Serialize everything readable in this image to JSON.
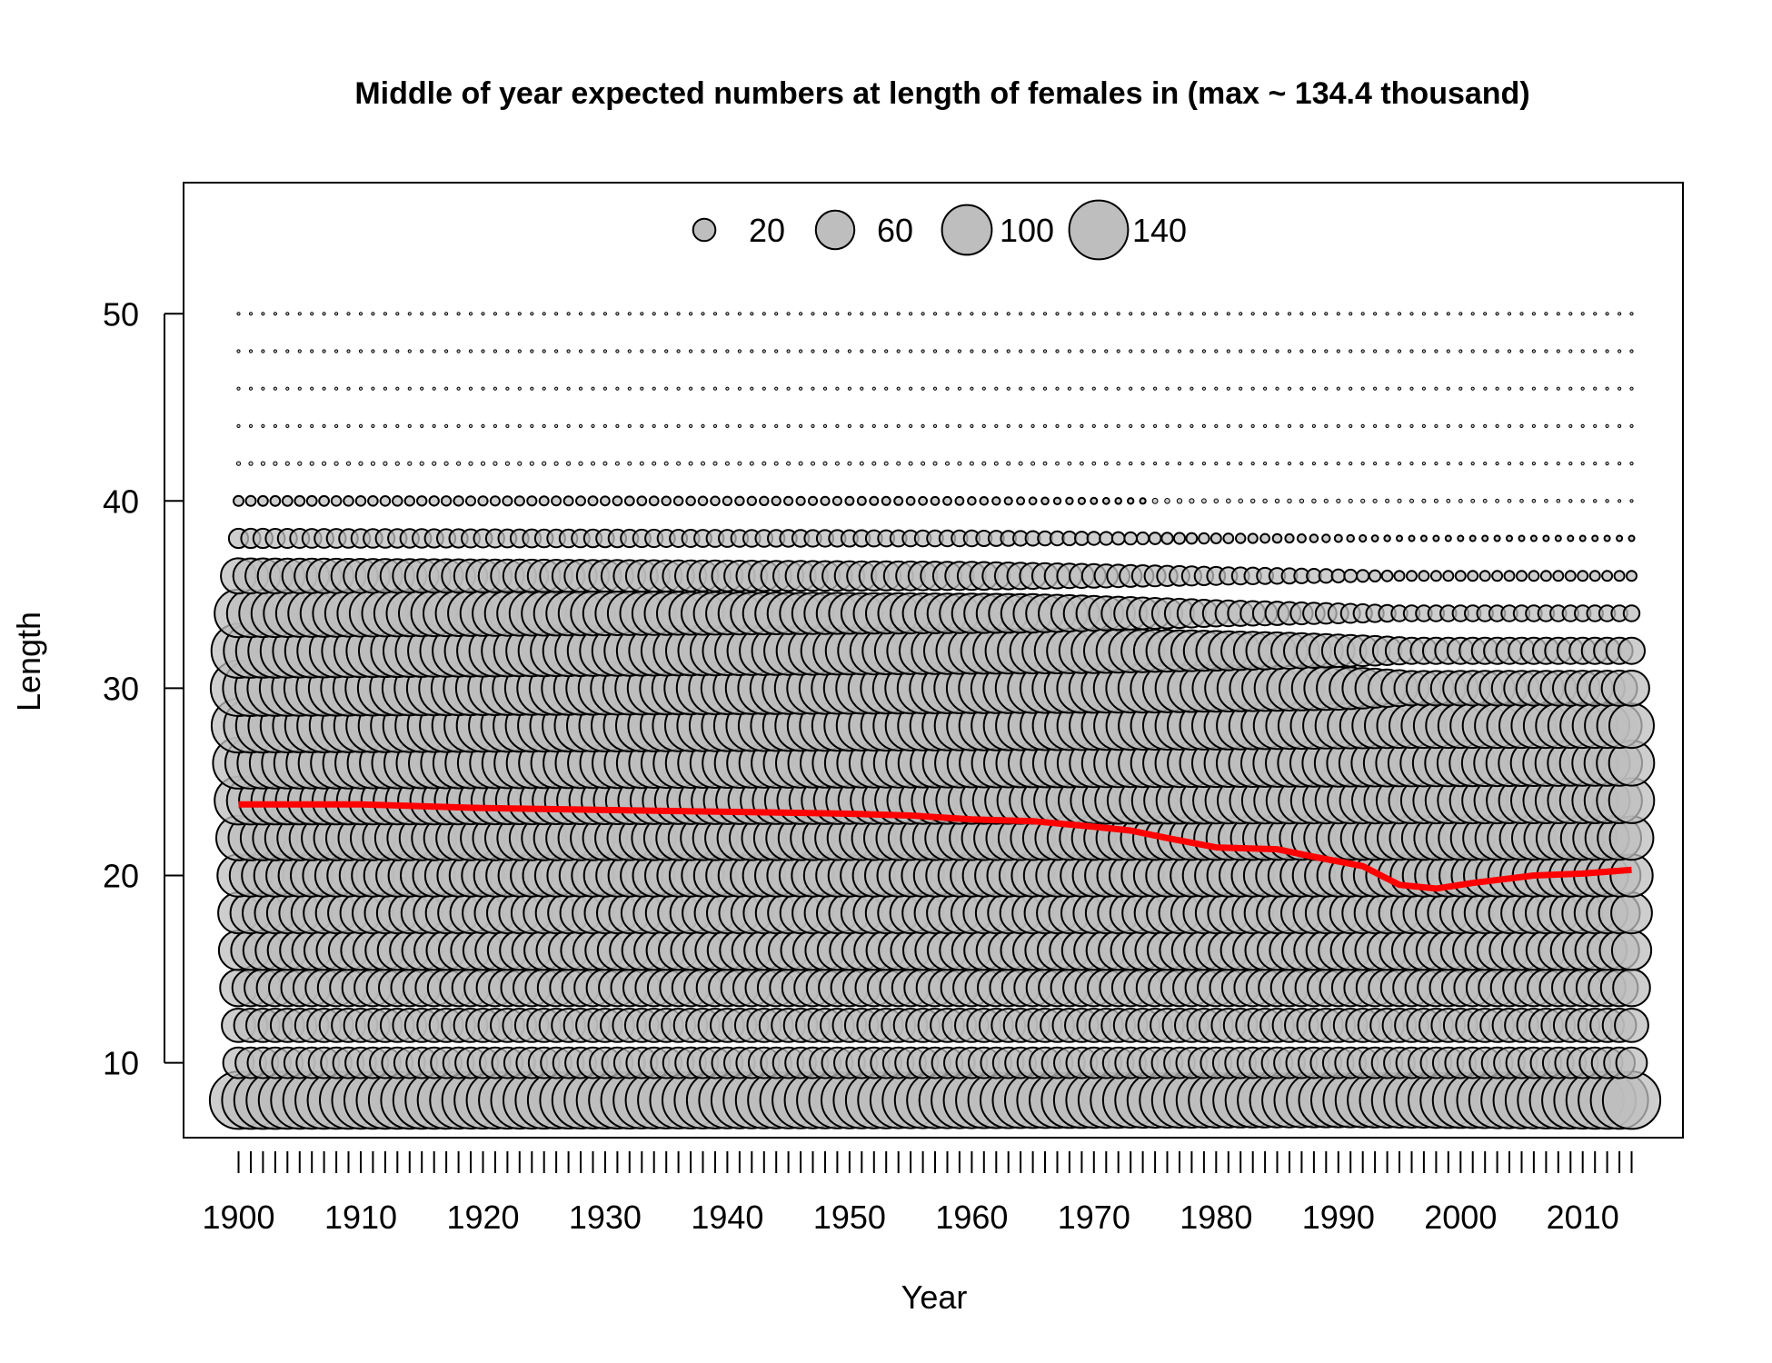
{
  "chart_data": {
    "type": "bubble",
    "title": "Middle of year expected numbers at length of females in (max ~ 134.4 thousand)",
    "xlabel": "Year",
    "ylabel": "Length",
    "xlim": [
      1895.5,
      2018.2
    ],
    "ylim": [
      6,
      57
    ],
    "x_ticks": [
      1900,
      1910,
      1920,
      1930,
      1940,
      1950,
      1960,
      1970,
      1980,
      1990,
      2000,
      2010
    ],
    "y_ticks": [
      10,
      20,
      30,
      40,
      50
    ],
    "years": {
      "start": 1900,
      "end": 2014
    },
    "length_bins": [
      8,
      10,
      12,
      14,
      16,
      18,
      20,
      22,
      24,
      26,
      28,
      30,
      32,
      34,
      36,
      38,
      40,
      42,
      44,
      46,
      48,
      50
    ],
    "bin_numbers_thousands": {
      "8": [
        [
          1900,
          133
        ],
        [
          1960,
          126
        ],
        [
          1990,
          118
        ],
        [
          2014,
          133
        ]
      ],
      "10": [
        [
          1900,
          38
        ],
        [
          2014,
          38
        ]
      ],
      "12": [
        [
          1900,
          45
        ],
        [
          2014,
          45
        ]
      ],
      "14": [
        [
          1900,
          55
        ],
        [
          2014,
          55
        ]
      ],
      "16": [
        [
          1900,
          62
        ],
        [
          2014,
          62
        ]
      ],
      "18": [
        [
          1900,
          67
        ],
        [
          2014,
          67
        ]
      ],
      "20": [
        [
          1900,
          72
        ],
        [
          2014,
          72
        ]
      ],
      "22": [
        [
          1900,
          80
        ],
        [
          2014,
          76
        ]
      ],
      "24": [
        [
          1900,
          92
        ],
        [
          1990,
          84
        ],
        [
          2014,
          82
        ]
      ],
      "26": [
        [
          1900,
          105
        ],
        [
          1980,
          92
        ],
        [
          2014,
          82
        ]
      ],
      "28": [
        [
          1900,
          117
        ],
        [
          1980,
          92
        ],
        [
          1995,
          80
        ],
        [
          2014,
          80
        ]
      ],
      "30": [
        [
          1900,
          125
        ],
        [
          1975,
          95
        ],
        [
          1990,
          75
        ],
        [
          1996,
          48
        ],
        [
          2014,
          50
        ]
      ],
      "32": [
        [
          1900,
          118
        ],
        [
          1970,
          80
        ],
        [
          1985,
          55
        ],
        [
          1996,
          28
        ],
        [
          2014,
          28
        ]
      ],
      "34": [
        [
          1900,
          92
        ],
        [
          1965,
          60
        ],
        [
          1980,
          28
        ],
        [
          1995,
          10
        ],
        [
          2014,
          10
        ]
      ],
      "36": [
        [
          1900,
          50
        ],
        [
          1960,
          32
        ],
        [
          1980,
          13
        ],
        [
          1995,
          4
        ],
        [
          2014,
          4
        ]
      ],
      "38": [
        [
          1900,
          15
        ],
        [
          1960,
          10
        ],
        [
          1980,
          4
        ],
        [
          1995,
          1.2
        ],
        [
          2014,
          1.2
        ]
      ],
      "40": [
        [
          1900,
          4
        ],
        [
          1960,
          2.5
        ],
        [
          1980,
          0.7
        ],
        [
          2014,
          0.35
        ]
      ],
      "42": [
        [
          1900,
          0.6
        ],
        [
          1970,
          0.5
        ],
        [
          1980,
          0.1
        ],
        [
          2014,
          0.1
        ]
      ],
      "44": [
        [
          1900,
          0.08
        ],
        [
          2014,
          0.08
        ]
      ],
      "46": [
        [
          1900,
          0.08
        ],
        [
          2014,
          0.08
        ]
      ],
      "48": [
        [
          1900,
          0.08
        ],
        [
          2014,
          0.08
        ]
      ],
      "50": [
        [
          1900,
          0.08
        ],
        [
          2014,
          0.08
        ]
      ]
    },
    "legend": {
      "placement": "top-center",
      "entries": [
        {
          "label": "20",
          "value": 20
        },
        {
          "label": "60",
          "value": 60
        },
        {
          "label": "100",
          "value": 100
        },
        {
          "label": "140",
          "value": 140
        }
      ]
    },
    "mean_length_line": {
      "color": "#ff0000",
      "points": [
        [
          1900,
          23.8
        ],
        [
          1910,
          23.8
        ],
        [
          1915,
          23.7
        ],
        [
          1920,
          23.6
        ],
        [
          1930,
          23.5
        ],
        [
          1940,
          23.4
        ],
        [
          1950,
          23.3
        ],
        [
          1955,
          23.2
        ],
        [
          1960,
          23.0
        ],
        [
          1965,
          22.9
        ],
        [
          1970,
          22.6
        ],
        [
          1973,
          22.4
        ],
        [
          1976,
          22.0
        ],
        [
          1980,
          21.5
        ],
        [
          1985,
          21.4
        ],
        [
          1988,
          21.0
        ],
        [
          1992,
          20.5
        ],
        [
          1995,
          19.5
        ],
        [
          1998,
          19.3
        ],
        [
          2001,
          19.6
        ],
        [
          2006,
          20.0
        ],
        [
          2010,
          20.1
        ],
        [
          2014,
          20.3
        ]
      ]
    },
    "colors": {
      "bubble_fill": "#bebebe",
      "bubble_stroke": "#000000",
      "line": "#ff0000"
    },
    "grid": false
  }
}
